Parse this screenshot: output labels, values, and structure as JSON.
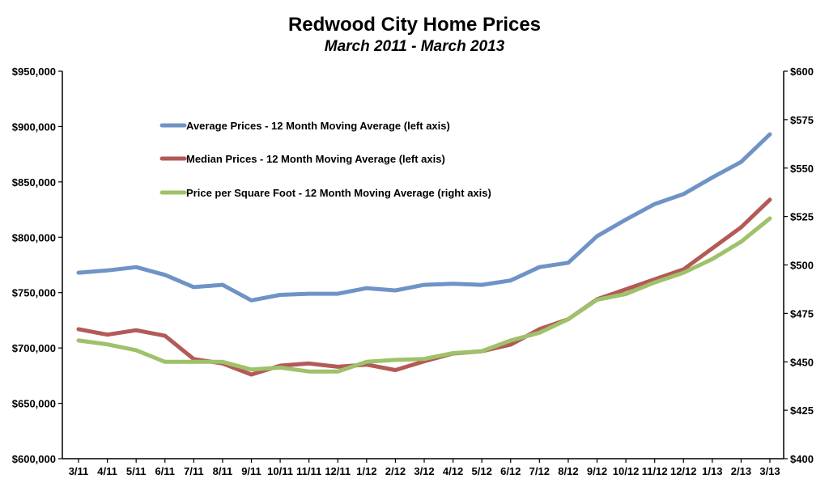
{
  "chart_data": {
    "type": "line",
    "title": "Redwood City Home Prices",
    "subtitle": "March 2011 - March 2013",
    "categories": [
      "3/11",
      "4/11",
      "5/11",
      "6/11",
      "7/11",
      "8/11",
      "9/11",
      "10/11",
      "11/11",
      "12/11",
      "1/12",
      "2/12",
      "3/12",
      "4/12",
      "5/12",
      "6/12",
      "7/12",
      "8/12",
      "9/12",
      "10/12",
      "11/12",
      "12/12",
      "1/13",
      "2/13",
      "3/13"
    ],
    "left_axis": {
      "ylim": [
        600000,
        950000
      ],
      "ticks": [
        600000,
        650000,
        700000,
        750000,
        800000,
        850000,
        900000,
        950000
      ],
      "tick_labels": [
        "$600,000",
        "$650,000",
        "$700,000",
        "$750,000",
        "$800,000",
        "$850,000",
        "$900,000",
        "$950,000"
      ]
    },
    "right_axis": {
      "ylim": [
        400,
        600
      ],
      "ticks": [
        400,
        425,
        450,
        475,
        500,
        525,
        550,
        575,
        600
      ],
      "tick_labels": [
        "$400",
        "$425",
        "$450",
        "$475",
        "$500",
        "$525",
        "$550",
        "$575",
        "$600"
      ]
    },
    "series": [
      {
        "name": "Average Prices - 12 Month Moving Average (left axis)",
        "axis": "left",
        "color": "#6f93c6",
        "values": [
          768000,
          770000,
          773000,
          766000,
          755000,
          757000,
          743000,
          748000,
          749000,
          749000,
          754000,
          752000,
          757000,
          758000,
          757000,
          761000,
          773000,
          777000,
          801000,
          816000,
          830000,
          839000,
          854000,
          868000,
          893000
        ]
      },
      {
        "name": "Median Prices - 12 Month Moving Average (left axis)",
        "axis": "left",
        "color": "#b35a57",
        "values": [
          717000,
          712000,
          716000,
          711000,
          690000,
          686000,
          676000,
          684000,
          686000,
          683000,
          685000,
          680000,
          688000,
          695000,
          697000,
          703000,
          717000,
          726000,
          744000,
          753000,
          762000,
          771000,
          790000,
          809000,
          834000
        ]
      },
      {
        "name": "Price per Square Foot - 12 Month Moving Average (right axis)",
        "axis": "right",
        "color": "#9fc16a",
        "values": [
          461,
          459,
          456,
          450,
          450,
          450,
          446,
          447,
          445,
          445,
          450,
          451,
          451.5,
          454.5,
          455.5,
          461,
          465,
          472,
          482,
          485,
          491,
          496,
          503,
          512,
          524
        ]
      }
    ],
    "legend_position": "upper-left inside plot",
    "grid": false
  }
}
